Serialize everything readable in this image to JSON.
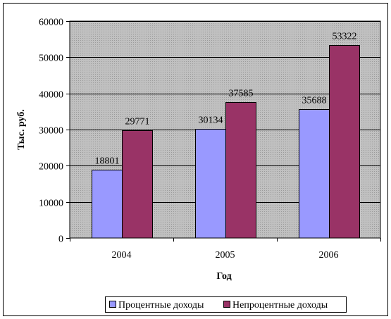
{
  "colors": {
    "series_1": "#9999FF",
    "series_2": "#993366",
    "plot_background": "#C0C0C0",
    "grid": "#000000",
    "axis": "#000000"
  },
  "chart_data": {
    "type": "bar",
    "categories": [
      "2004",
      "2005",
      "2006"
    ],
    "series": [
      {
        "name": "Процентные доходы",
        "values": [
          18801,
          30134,
          35688
        ]
      },
      {
        "name": "Непроцентные доходы",
        "values": [
          29771,
          37585,
          53322
        ]
      }
    ],
    "data_labels": [
      [
        "18801",
        "30134",
        "35688"
      ],
      [
        "29771",
        "37585",
        "53322"
      ]
    ],
    "title": "",
    "xlabel": "Год",
    "ylabel": "Тыс. руб.",
    "ylim": [
      0,
      60000
    ],
    "yticks": [
      0,
      10000,
      20000,
      30000,
      40000,
      50000,
      60000
    ],
    "ytick_labels": [
      "0",
      "10000",
      "20000",
      "30000",
      "40000",
      "50000",
      "60000"
    ],
    "grid": true,
    "legend_position": "bottom-right"
  }
}
